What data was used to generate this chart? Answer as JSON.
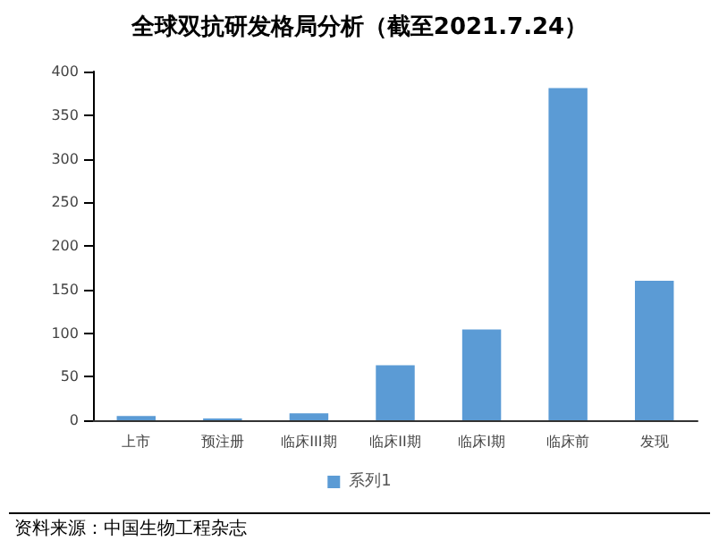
{
  "chart_data": {
    "type": "bar",
    "title": "全球双抗研发格局分析（截至2021.7.24）",
    "categories": [
      "上市",
      "预注册",
      "临床III期",
      "临床II期",
      "临床I期",
      "临床前",
      "发现"
    ],
    "series": [
      {
        "name": "系列1",
        "color": "#5b9bd5",
        "values": [
          5,
          2,
          8,
          63,
          104,
          381,
          160
        ]
      }
    ],
    "ylim": [
      0,
      400
    ],
    "yticks": [
      0,
      50,
      100,
      150,
      200,
      250,
      300,
      350,
      400
    ],
    "grid": false,
    "legend": "bottom",
    "annotations": [
      "资料来源：中国生物工程杂志"
    ]
  }
}
